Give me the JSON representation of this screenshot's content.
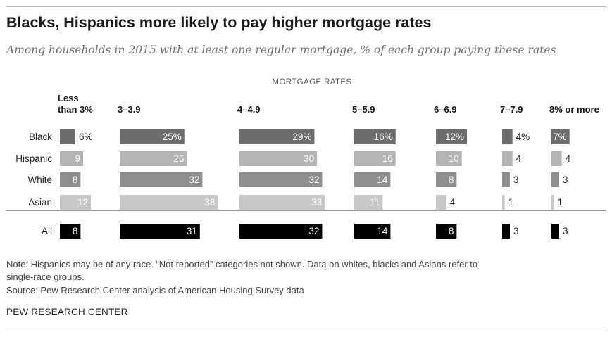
{
  "header": {
    "title": "Blacks, Hispanics more likely to pay higher mortgage rates",
    "subtitle": "Among households in 2015 with at least one regular mortgage, % of each group paying these rates",
    "group_label": "MORTGAGE RATES"
  },
  "footer": {
    "note_line1": "Note: Hispanics may be of any race. “Not reported” categories not shown. Data on whites, blacks and Asians refer to",
    "note_line2": "single-race groups.",
    "source": "Source: Pew Research Center analysis of American Housing Survey data",
    "brand": "PEW RESEARCH CENTER"
  },
  "chart_data": {
    "type": "bar",
    "categories": [
      "Less than 3%",
      "3–3.9",
      "4–4.9",
      "5–5.9",
      "6–6.9",
      "7–7.9",
      "8% or more"
    ],
    "category_label_lines": [
      [
        "Less",
        "than 3%"
      ],
      [
        "3–3.9"
      ],
      [
        "4–4.9"
      ],
      [
        "5–5.9"
      ],
      [
        "6–6.9"
      ],
      [
        "7–7.9"
      ],
      [
        "8% or more"
      ]
    ],
    "unit": "%",
    "series": [
      {
        "name": "Black",
        "values": [
          6,
          25,
          29,
          16,
          12,
          4,
          7
        ],
        "labels": [
          "6%",
          "25%",
          "29%",
          "16%",
          "12%",
          "4%",
          "7%"
        ],
        "color": "#6d6d6d"
      },
      {
        "name": "Hispanic",
        "values": [
          9,
          26,
          30,
          16,
          10,
          4,
          4
        ],
        "labels": [
          "9",
          "26",
          "30",
          "16",
          "10",
          "4",
          "4"
        ],
        "color": "#b4b4b4"
      },
      {
        "name": "White",
        "values": [
          8,
          32,
          32,
          14,
          8,
          3,
          3
        ],
        "labels": [
          "8",
          "32",
          "32",
          "14",
          "8",
          "3",
          "3"
        ],
        "color": "#8f8f8f"
      },
      {
        "name": "Asian",
        "values": [
          12,
          38,
          33,
          11,
          4,
          1,
          1
        ],
        "labels": [
          "12",
          "38",
          "33",
          "11",
          "4",
          "1",
          "1"
        ],
        "color": "#c8c8c8"
      },
      {
        "name": "All",
        "values": [
          8,
          31,
          32,
          14,
          8,
          3,
          3
        ],
        "labels": [
          "8",
          "31",
          "32",
          "14",
          "8",
          "3",
          "3"
        ],
        "color": "#000000"
      }
    ]
  }
}
